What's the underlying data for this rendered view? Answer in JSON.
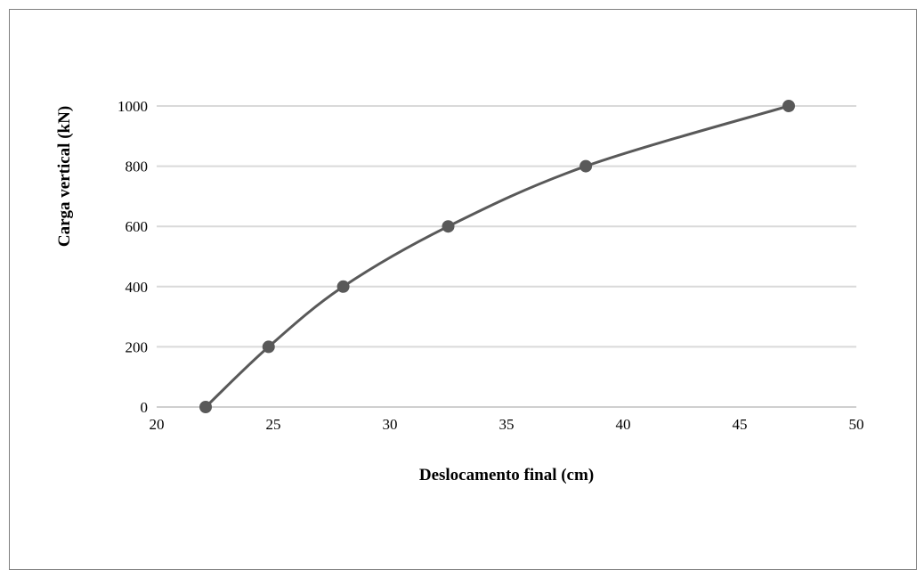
{
  "chart_data": {
    "type": "line",
    "title": "",
    "xlabel": "Deslocamento final (cm)",
    "ylabel": "Carga vertical (kN)",
    "xlim": [
      20,
      50
    ],
    "ylim": [
      0,
      1000
    ],
    "x_ticks": [
      20,
      25,
      30,
      35,
      40,
      45,
      50
    ],
    "y_ticks": [
      0,
      200,
      400,
      600,
      800,
      1000
    ],
    "grid": "horizontal",
    "legend": "none",
    "smooth": true,
    "series": [
      {
        "x": [
          22.1,
          24.8,
          28.0,
          32.5,
          38.4,
          47.1
        ],
        "y": [
          0,
          200,
          400,
          600,
          800,
          1000
        ],
        "color": "#595959"
      }
    ]
  }
}
